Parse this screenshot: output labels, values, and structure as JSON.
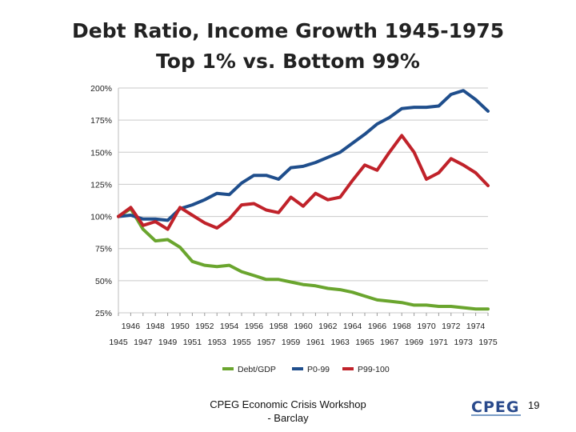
{
  "chart_data": {
    "type": "line",
    "title_lines": [
      "Debt Ratio, Income Growth 1945-1975",
      "Top 1% vs. Bottom 99%"
    ],
    "xlabel": "",
    "ylabel": "",
    "x": [
      1945,
      1946,
      1947,
      1948,
      1949,
      1950,
      1951,
      1952,
      1953,
      1954,
      1955,
      1956,
      1957,
      1958,
      1959,
      1960,
      1961,
      1962,
      1963,
      1964,
      1965,
      1966,
      1967,
      1968,
      1969,
      1970,
      1971,
      1972,
      1973,
      1974,
      1975
    ],
    "ylim": [
      25,
      200
    ],
    "yticks": [
      25,
      50,
      75,
      100,
      125,
      150,
      175,
      200
    ],
    "ytick_labels": [
      "25%",
      "50%",
      "75%",
      "100%",
      "125%",
      "150%",
      "175%",
      "200%"
    ],
    "xticks_top": [
      "1946",
      "1948",
      "1950",
      "1952",
      "1954",
      "1956",
      "1958",
      "1960",
      "1962",
      "1964",
      "1966",
      "1968",
      "1970",
      "1972",
      "1974"
    ],
    "xticks_bottom": [
      "1945",
      "1947",
      "1949",
      "1951",
      "1953",
      "1955",
      "1957",
      "1959",
      "1961",
      "1963",
      "1965",
      "1967",
      "1969",
      "1971",
      "1973",
      "1975"
    ],
    "grid": true,
    "legend_position": "bottom",
    "series": [
      {
        "name": "Debt/GDP",
        "color": "#6aa52e",
        "values": [
          100,
          106,
          90,
          81,
          82,
          76,
          65,
          62,
          61,
          62,
          57,
          54,
          51,
          51,
          49,
          47,
          46,
          44,
          43,
          41,
          38,
          35,
          34,
          33,
          31,
          31,
          30,
          30,
          29,
          28,
          28
        ]
      },
      {
        "name": "P0-99",
        "color": "#1f4e8c",
        "values": [
          100,
          101,
          98,
          98,
          97,
          106,
          109,
          113,
          118,
          117,
          126,
          132,
          132,
          129,
          138,
          139,
          142,
          146,
          150,
          157,
          164,
          172,
          177,
          184,
          185,
          185,
          186,
          195,
          198,
          191,
          182
        ]
      },
      {
        "name": "P99-100",
        "color": "#c0222a",
        "values": [
          100,
          107,
          93,
          96,
          90,
          107,
          101,
          95,
          91,
          98,
          109,
          110,
          105,
          103,
          115,
          108,
          118,
          113,
          115,
          128,
          140,
          136,
          150,
          163,
          150,
          129,
          134,
          145,
          140,
          134,
          124
        ]
      }
    ]
  },
  "footer": {
    "text_line1": "CPEG Economic Crisis Workshop",
    "text_line2": "- Barclay",
    "logo_text": "CPEG",
    "page_number": "19"
  }
}
